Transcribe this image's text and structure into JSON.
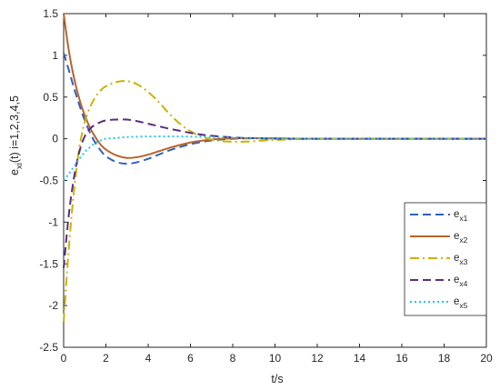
{
  "chart_data": {
    "type": "line",
    "xlabel": "t/s",
    "ylabel_main": "e",
    "ylabel_sub": "xi",
    "ylabel_rest": "(t) i=1,2,3,4,5",
    "xlim": [
      0,
      20
    ],
    "ylim": [
      -2.5,
      1.5
    ],
    "xticks": [
      0,
      2,
      4,
      6,
      8,
      10,
      12,
      14,
      16,
      18,
      20
    ],
    "yticks": [
      -2.5,
      -2,
      -1.5,
      -1,
      -0.5,
      0,
      0.5,
      1,
      1.5
    ],
    "ytick_labels": [
      "-2.5",
      "-2",
      "-1.5",
      "-1",
      "-0.5",
      "0",
      "0.5",
      "1",
      "1.5"
    ],
    "grid": false,
    "legend_position": "bottom-right",
    "x": [
      0,
      0.25,
      0.5,
      0.75,
      1,
      1.25,
      1.5,
      1.75,
      2,
      2.5,
      3,
      3.5,
      4,
      4.5,
      5,
      5.5,
      6,
      6.5,
      7,
      7.5,
      8,
      8.5,
      9,
      9.5,
      10,
      11,
      12,
      14,
      16,
      18,
      20
    ],
    "series": [
      {
        "name": "e",
        "sub": "x1",
        "color": "#3060c0",
        "dash": "9,5",
        "values": [
          1.03,
          0.82,
          0.6,
          0.4,
          0.22,
          0.07,
          -0.05,
          -0.14,
          -0.21,
          -0.28,
          -0.3,
          -0.28,
          -0.24,
          -0.19,
          -0.14,
          -0.1,
          -0.065,
          -0.04,
          -0.02,
          -0.008,
          0.0,
          0.004,
          0.006,
          0.006,
          0.005,
          0.002,
          0.0,
          0.0,
          0.0,
          0.0,
          0.0
        ]
      },
      {
        "name": "e",
        "sub": "x2",
        "color": "#b8642a",
        "dash": "",
        "values": [
          1.5,
          1.05,
          0.72,
          0.47,
          0.28,
          0.13,
          0.02,
          -0.07,
          -0.13,
          -0.2,
          -0.23,
          -0.22,
          -0.19,
          -0.15,
          -0.11,
          -0.075,
          -0.045,
          -0.025,
          -0.01,
          0.0,
          0.005,
          0.007,
          0.007,
          0.005,
          0.004,
          0.001,
          0.0,
          0.0,
          0.0,
          0.0,
          0.0
        ]
      },
      {
        "name": "e",
        "sub": "x3",
        "color": "#c8b400",
        "dash": "10,4,2,4",
        "values": [
          -2.2,
          -1.3,
          -0.6,
          -0.1,
          0.2,
          0.38,
          0.5,
          0.58,
          0.63,
          0.68,
          0.69,
          0.65,
          0.56,
          0.44,
          0.3,
          0.18,
          0.09,
          0.03,
          -0.01,
          -0.03,
          -0.035,
          -0.035,
          -0.03,
          -0.02,
          -0.015,
          -0.005,
          0.0,
          0.0,
          0.0,
          0.0,
          0.0
        ]
      },
      {
        "name": "e",
        "sub": "x4",
        "color": "#5a2d82",
        "dash": "9,5",
        "values": [
          -1.55,
          -0.9,
          -0.45,
          -0.15,
          0.03,
          0.12,
          0.17,
          0.2,
          0.22,
          0.23,
          0.23,
          0.21,
          0.18,
          0.15,
          0.12,
          0.095,
          0.07,
          0.05,
          0.035,
          0.025,
          0.015,
          0.01,
          0.007,
          0.004,
          0.002,
          0.0,
          0.0,
          0.0,
          0.0,
          0.0,
          0.0
        ]
      },
      {
        "name": "e",
        "sub": "x5",
        "color": "#20c8e8",
        "dash": "2,3",
        "values": [
          -0.5,
          -0.42,
          -0.33,
          -0.24,
          -0.16,
          -0.1,
          -0.05,
          -0.02,
          0.0,
          0.01,
          0.02,
          0.025,
          0.027,
          0.028,
          0.028,
          0.027,
          0.025,
          0.022,
          0.019,
          0.016,
          0.013,
          0.01,
          0.008,
          0.006,
          0.004,
          0.002,
          0.0,
          0.0,
          0.0,
          0.0,
          0.0
        ]
      }
    ]
  }
}
